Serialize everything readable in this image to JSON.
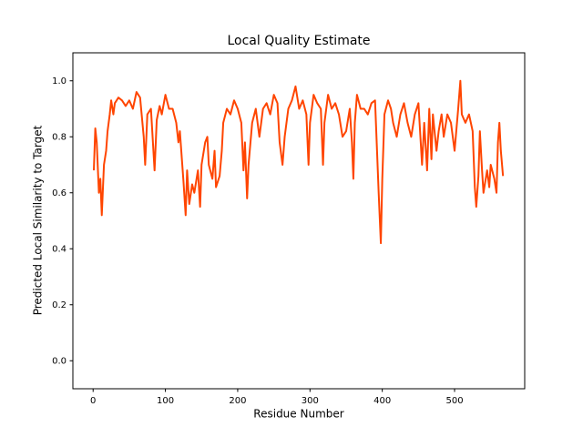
{
  "chart_data": {
    "type": "line",
    "title": "Local Quality Estimate",
    "x_label": "Residue Number",
    "y_label": "Predicted Local Similarity to Target",
    "color": "#ff4500",
    "x": [
      1,
      3,
      5,
      8,
      10,
      12,
      15,
      18,
      20,
      23,
      25,
      28,
      30,
      35,
      40,
      45,
      50,
      55,
      60,
      65,
      70,
      72,
      75,
      80,
      85,
      88,
      92,
      95,
      100,
      105,
      110,
      115,
      118,
      120,
      125,
      128,
      130,
      133,
      137,
      140,
      145,
      148,
      150,
      155,
      158,
      160,
      165,
      168,
      170,
      175,
      178,
      180,
      185,
      190,
      195,
      200,
      205,
      208,
      210,
      213,
      215,
      220,
      225,
      230,
      235,
      240,
      245,
      250,
      255,
      258,
      262,
      265,
      270,
      275,
      280,
      285,
      290,
      295,
      298,
      300,
      305,
      310,
      315,
      318,
      320,
      325,
      330,
      335,
      340,
      345,
      350,
      355,
      358,
      360,
      362,
      365,
      370,
      375,
      380,
      385,
      390,
      395,
      398,
      400,
      403,
      408,
      412,
      415,
      420,
      425,
      430,
      435,
      440,
      445,
      450,
      455,
      458,
      462,
      465,
      468,
      470,
      475,
      478,
      482,
      485,
      490,
      495,
      500,
      505,
      508,
      510,
      515,
      520,
      525,
      528,
      530,
      533,
      535,
      538,
      540,
      545,
      548,
      550,
      555,
      558,
      560,
      562,
      564,
      567
    ],
    "values": [
      0.68,
      0.83,
      0.78,
      0.6,
      0.65,
      0.52,
      0.7,
      0.75,
      0.82,
      0.88,
      0.93,
      0.88,
      0.92,
      0.94,
      0.93,
      0.91,
      0.93,
      0.9,
      0.96,
      0.94,
      0.8,
      0.7,
      0.88,
      0.9,
      0.68,
      0.86,
      0.91,
      0.88,
      0.95,
      0.9,
      0.9,
      0.85,
      0.78,
      0.82,
      0.64,
      0.52,
      0.68,
      0.56,
      0.63,
      0.6,
      0.68,
      0.55,
      0.7,
      0.78,
      0.8,
      0.7,
      0.65,
      0.75,
      0.62,
      0.66,
      0.75,
      0.85,
      0.9,
      0.88,
      0.93,
      0.9,
      0.85,
      0.68,
      0.78,
      0.58,
      0.7,
      0.85,
      0.9,
      0.8,
      0.9,
      0.92,
      0.88,
      0.95,
      0.92,
      0.78,
      0.7,
      0.8,
      0.9,
      0.93,
      0.98,
      0.9,
      0.93,
      0.88,
      0.7,
      0.85,
      0.95,
      0.92,
      0.9,
      0.7,
      0.85,
      0.95,
      0.9,
      0.92,
      0.88,
      0.8,
      0.82,
      0.9,
      0.78,
      0.65,
      0.85,
      0.95,
      0.9,
      0.9,
      0.88,
      0.92,
      0.93,
      0.6,
      0.42,
      0.65,
      0.88,
      0.93,
      0.9,
      0.85,
      0.8,
      0.88,
      0.92,
      0.85,
      0.8,
      0.88,
      0.92,
      0.7,
      0.85,
      0.68,
      0.9,
      0.72,
      0.88,
      0.75,
      0.82,
      0.88,
      0.8,
      0.88,
      0.85,
      0.75,
      0.9,
      1.0,
      0.88,
      0.85,
      0.88,
      0.82,
      0.62,
      0.55,
      0.66,
      0.82,
      0.68,
      0.6,
      0.68,
      0.62,
      0.7,
      0.65,
      0.6,
      0.78,
      0.85,
      0.75,
      0.66
    ],
    "xlim": [
      -28,
      597
    ],
    "ylim": [
      -0.1,
      1.1
    ],
    "xticks": [
      0,
      100,
      200,
      300,
      400,
      500
    ],
    "yticks": [
      {
        "value": 0,
        "label": "0.0"
      },
      0.2,
      0.4,
      0.6,
      0.8,
      {
        "value": 1,
        "label": "1.0"
      }
    ]
  }
}
